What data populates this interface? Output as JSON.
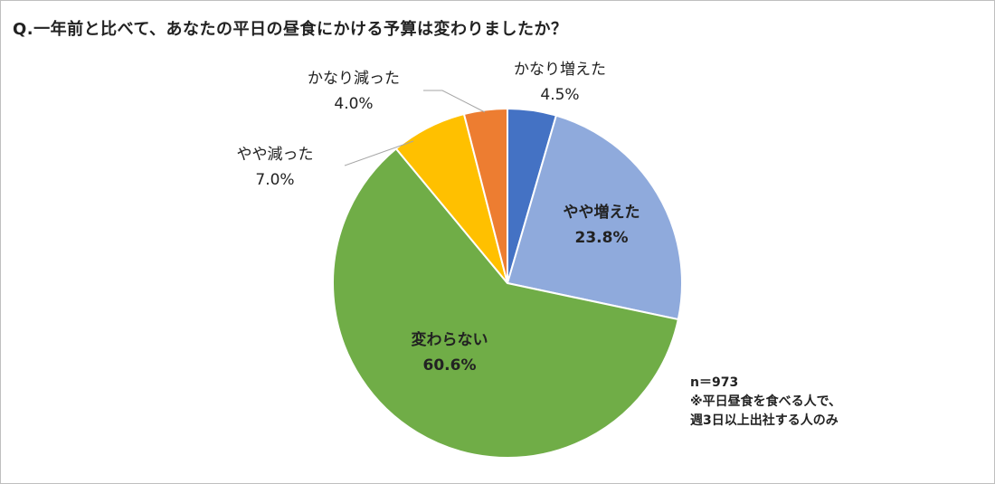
{
  "question": "Q.一年前と比べて、あなたの平日の昼食にかける予算は変わりましたか？",
  "chart_data": {
    "type": "pie",
    "categories": [
      "かなり増えた",
      "やや増えた",
      "変わらない",
      "やや減った",
      "かなり減った"
    ],
    "values": [
      4.5,
      23.8,
      60.6,
      7.0,
      4.0
    ],
    "value_labels": [
      "4.5%",
      "23.8%",
      "60.6%",
      "7.0%",
      "4.0%"
    ],
    "colors": [
      "#4472C4",
      "#8FAADC",
      "#70AD47",
      "#FFC000",
      "#ED7D31"
    ],
    "start": "12 o'clock",
    "direction": "clockwise",
    "legend": "none"
  },
  "note": {
    "line1": "n＝973",
    "line2": "※平日昼食を食べる人で、",
    "line3": "週3日以上出社する人のみ"
  }
}
